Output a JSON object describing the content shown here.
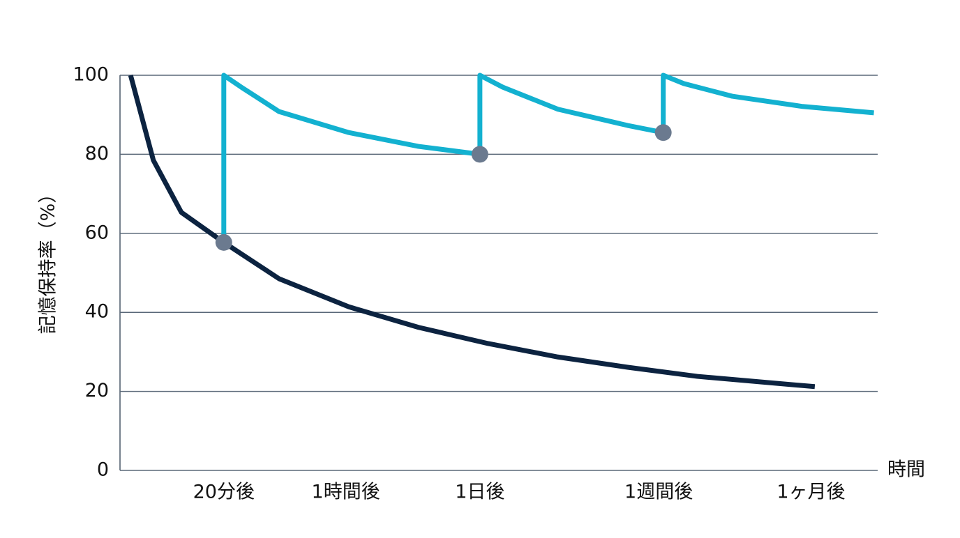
{
  "chart_data": {
    "type": "line",
    "y_label": "記憶保持率（%）",
    "x_label": "時間",
    "xlim": [
      0,
      100
    ],
    "xticks": [
      {
        "value": 13.7,
        "label": "20分後"
      },
      {
        "value": 29.8,
        "label": "1時間後"
      },
      {
        "value": 47.5,
        "label": "1日後"
      },
      {
        "value": 71.1,
        "label": "1週間後"
      },
      {
        "value": 91.2,
        "label": "1ヶ月後"
      }
    ],
    "ylim": [
      0,
      100
    ],
    "yticks": [
      0,
      20,
      40,
      60,
      80,
      100
    ],
    "grid": true,
    "series": [
      {
        "style": "line",
        "color": "#0c2340",
        "x": [
          1.4,
          4.4,
          8.1,
          13.7,
          21.0,
          30.2,
          39.4,
          48.6,
          57.8,
          67.0,
          76.2,
          91.7
        ],
        "values": [
          100,
          78.5,
          65.3,
          57.7,
          48.5,
          41.4,
          36.2,
          32.1,
          28.7,
          26.1,
          23.8,
          21.2
        ]
      },
      {
        "style": "line",
        "color": "#13b1d0",
        "x": [
          13.7,
          13.7,
          16.0,
          21.0,
          30.2,
          39.4,
          47.5,
          47.5,
          50.5,
          57.8,
          67.0,
          71.7,
          71.7,
          74.4,
          80.8,
          90.1,
          99.5
        ],
        "values": [
          57.7,
          100,
          97.0,
          90.8,
          85.5,
          82.0,
          80,
          100,
          97.0,
          91.4,
          87.3,
          85.5,
          100,
          97.9,
          94.7,
          92.1,
          90.5
        ]
      },
      {
        "style": "points",
        "color": "#6b7a8f",
        "x": [
          13.7,
          47.5,
          71.7
        ],
        "values": [
          57.7,
          80,
          85.5
        ]
      }
    ]
  }
}
